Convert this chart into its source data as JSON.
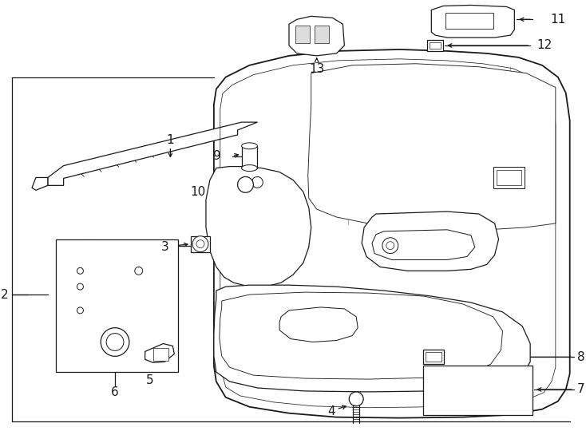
{
  "bg_color": "#ffffff",
  "line_color": "#1a1a1a",
  "fig_width": 7.34,
  "fig_height": 5.4,
  "dpi": 100,
  "lw": 0.9,
  "fs_label": 11
}
